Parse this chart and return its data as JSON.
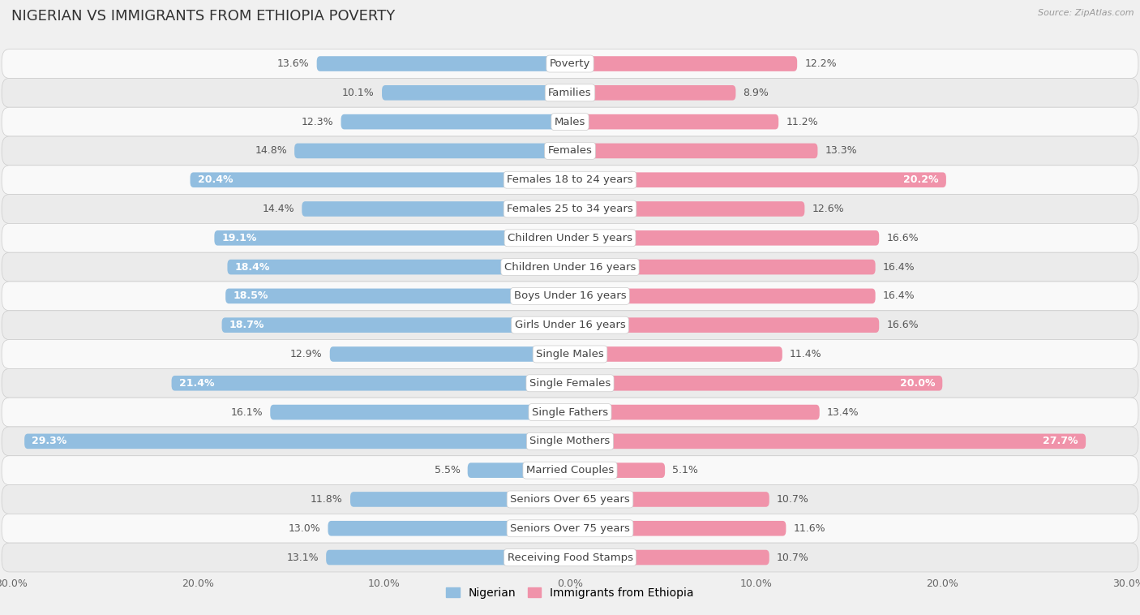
{
  "title": "NIGERIAN VS IMMIGRANTS FROM ETHIOPIA POVERTY",
  "source": "Source: ZipAtlas.com",
  "categories": [
    "Poverty",
    "Families",
    "Males",
    "Females",
    "Females 18 to 24 years",
    "Females 25 to 34 years",
    "Children Under 5 years",
    "Children Under 16 years",
    "Boys Under 16 years",
    "Girls Under 16 years",
    "Single Males",
    "Single Females",
    "Single Fathers",
    "Single Mothers",
    "Married Couples",
    "Seniors Over 65 years",
    "Seniors Over 75 years",
    "Receiving Food Stamps"
  ],
  "nigerian": [
    13.6,
    10.1,
    12.3,
    14.8,
    20.4,
    14.4,
    19.1,
    18.4,
    18.5,
    18.7,
    12.9,
    21.4,
    16.1,
    29.3,
    5.5,
    11.8,
    13.0,
    13.1
  ],
  "ethiopian": [
    12.2,
    8.9,
    11.2,
    13.3,
    20.2,
    12.6,
    16.6,
    16.4,
    16.4,
    16.6,
    11.4,
    20.0,
    13.4,
    27.7,
    5.1,
    10.7,
    11.6,
    10.7
  ],
  "nigerian_color": "#92BEE0",
  "ethiopian_color": "#F093AA",
  "background_color": "#f0f0f0",
  "row_color_light": "#f9f9f9",
  "row_color_dark": "#ebebeb",
  "xlim": 30.0,
  "bar_height": 0.52,
  "label_fontsize": 9.0,
  "category_fontsize": 9.5,
  "title_fontsize": 13,
  "label_inside_threshold": 17.0,
  "legend_labels": [
    "Nigerian",
    "Immigrants from Ethiopia"
  ]
}
